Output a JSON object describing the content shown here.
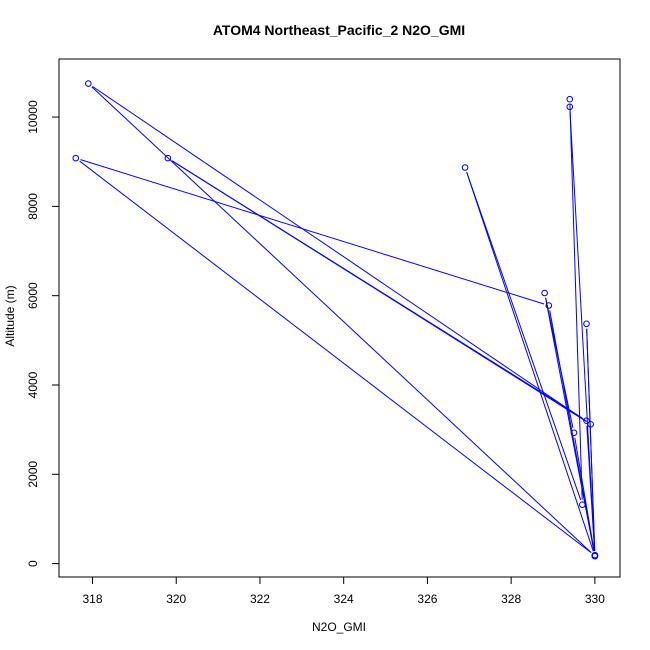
{
  "chart_data": {
    "type": "line",
    "title": "ATOM4 Northeast_Pacific_2 N2O_GMI",
    "xlabel": "N2O_GMI",
    "ylabel": "Altitude (m)",
    "xlim": [
      317.2,
      330.6
    ],
    "ylim": [
      -300,
      11300
    ],
    "xticks": [
      318,
      320,
      322,
      324,
      326,
      328,
      330
    ],
    "yticks": [
      0,
      2000,
      4000,
      6000,
      8000,
      10000
    ],
    "grid": false,
    "legend": "none",
    "series": [
      {
        "color": "#0000ff",
        "marker": "open-circle",
        "points": [
          {
            "x": 330.0,
            "y": 180
          },
          {
            "x": 317.6,
            "y": 9080
          },
          {
            "x": 328.9,
            "y": 5780
          },
          {
            "x": 330.0,
            "y": 170
          },
          {
            "x": 317.9,
            "y": 10750
          },
          {
            "x": 329.9,
            "y": 3120
          },
          {
            "x": 319.8,
            "y": 9080
          },
          {
            "x": 329.8,
            "y": 3200
          },
          {
            "x": 330.0,
            "y": 170
          },
          {
            "x": 326.9,
            "y": 8870
          },
          {
            "x": 329.7,
            "y": 1320
          },
          {
            "x": 329.4,
            "y": 10400
          },
          {
            "x": 329.4,
            "y": 10230
          },
          {
            "x": 330.0,
            "y": 170
          },
          {
            "x": 328.8,
            "y": 6060
          },
          {
            "x": 329.5,
            "y": 2930
          },
          {
            "x": 330.0,
            "y": 180
          },
          {
            "x": 329.8,
            "y": 5370
          },
          {
            "x": 330.0,
            "y": 190
          }
        ]
      }
    ]
  }
}
